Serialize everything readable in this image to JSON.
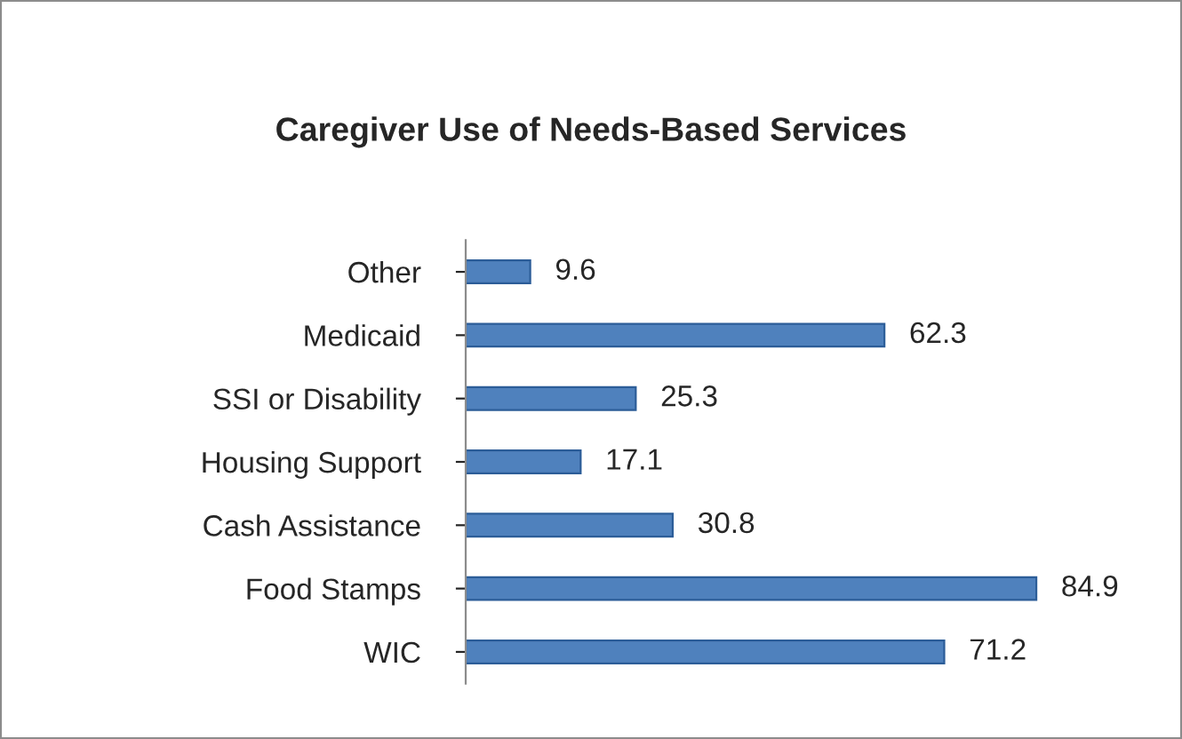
{
  "chart_data": {
    "type": "bar",
    "orientation": "horizontal",
    "title": "Caregiver Use of Needs-Based Services",
    "categories": [
      "Other",
      "Medicaid",
      "SSI or Disability",
      "Housing Support",
      "Cash Assistance",
      "Food Stamps",
      "WIC"
    ],
    "values": [
      9.6,
      62.3,
      25.3,
      17.1,
      30.8,
      84.9,
      71.2
    ],
    "color": "#4f81bd",
    "data_labels": true,
    "grid": false,
    "legend": false
  }
}
